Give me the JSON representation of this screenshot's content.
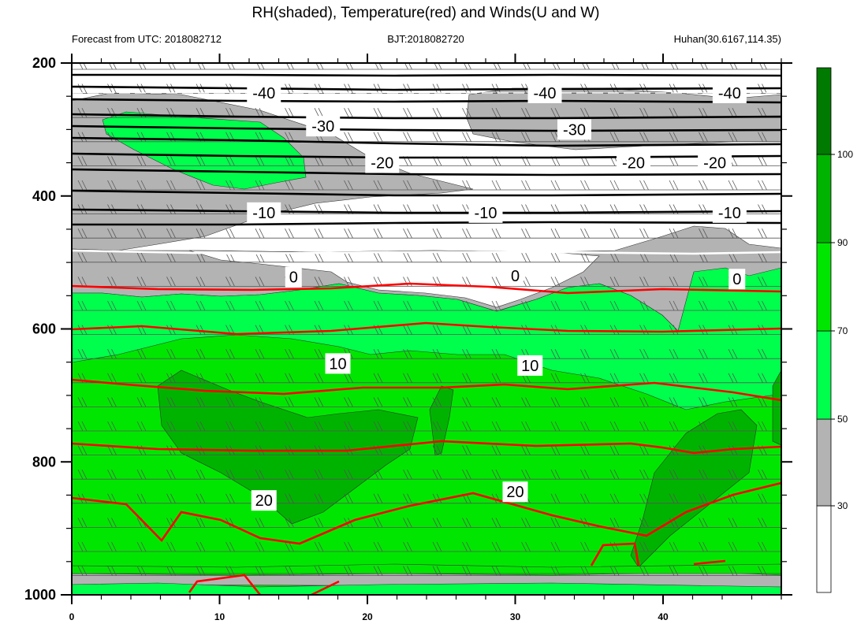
{
  "chart_data": {
    "type": "contour",
    "title": "RH(shaded), Temperature(red) and Winds(U and W)",
    "subtitle_left": "Forecast from UTC: 2018082712",
    "subtitle_center": "BJT:2018082720",
    "subtitle_right": "Huhan(30.6167,114.35)",
    "x_ticks": [
      "0",
      "10",
      "20",
      "30",
      "40"
    ],
    "x_range": [
      0,
      48
    ],
    "y_ticks": [
      "200",
      "400",
      "600",
      "800",
      "1000"
    ],
    "y_range": [
      200,
      1000
    ],
    "colorbar_ticks": [
      "30",
      "50",
      "70",
      "90",
      "100"
    ],
    "colorbar_colors": [
      "#ffffff",
      "#b3b3b3",
      "#00ff4c",
      "#00e600",
      "#00b300",
      "#007a00"
    ],
    "temperature_contours": [
      {
        "label": "-40",
        "pressure": 250,
        "color": "#000000"
      },
      {
        "label": "-30",
        "pressure": 300,
        "color": "#000000"
      },
      {
        "label": "-20",
        "pressure": 350,
        "color": "#000000"
      },
      {
        "label": "-10",
        "pressure": 425,
        "color": "#000000"
      },
      {
        "label": "0",
        "pressure": 520,
        "color": "#ffffff"
      },
      {
        "label": "10",
        "pressure": 650,
        "color": "#ff0000"
      },
      {
        "label": "20",
        "pressure": 850,
        "color": "#ff0000"
      }
    ],
    "contour_labels": [
      {
        "text": "-40",
        "x": 13,
        "p": 245
      },
      {
        "text": "-40",
        "x": 32,
        "p": 245
      },
      {
        "text": "-40",
        "x": 44.5,
        "p": 245
      },
      {
        "text": "-30",
        "x": 17,
        "p": 295
      },
      {
        "text": "-30",
        "x": 34,
        "p": 300
      },
      {
        "text": "-20",
        "x": 21,
        "p": 350
      },
      {
        "text": "-20",
        "x": 38,
        "p": 350
      },
      {
        "text": "-20",
        "x": 43.5,
        "p": 350
      },
      {
        "text": "-10",
        "x": 13,
        "p": 425
      },
      {
        "text": "-10",
        "x": 28,
        "p": 425
      },
      {
        "text": "-10",
        "x": 44.5,
        "p": 425
      },
      {
        "text": "0",
        "x": 15,
        "p": 522
      },
      {
        "text": "0",
        "x": 30,
        "p": 520
      },
      {
        "text": "0",
        "x": 45,
        "p": 525
      },
      {
        "text": "10",
        "x": 18,
        "p": 652
      },
      {
        "text": "10",
        "x": 31,
        "p": 655
      },
      {
        "text": "20",
        "x": 13,
        "p": 858
      },
      {
        "text": "20",
        "x": 30,
        "p": 845
      }
    ]
  }
}
